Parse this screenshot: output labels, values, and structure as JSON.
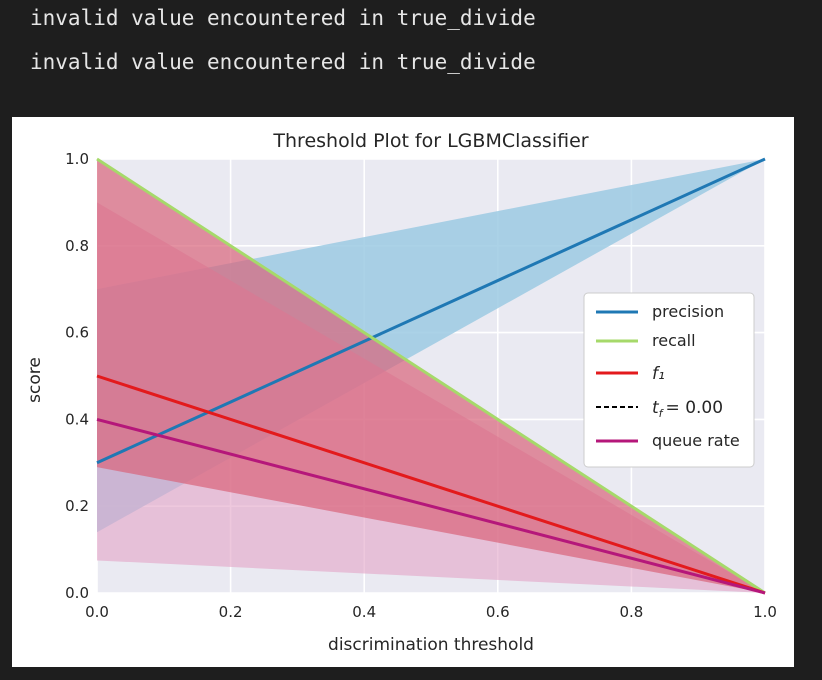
{
  "console": {
    "lines": [
      "invalid value encountered in true_divide",
      "invalid value encountered in true_divide"
    ]
  },
  "chart_data": {
    "type": "line",
    "title": "Threshold Plot for LGBMClassifier",
    "xlabel": "discrimination threshold",
    "ylabel": "score",
    "xlim": [
      0,
      1
    ],
    "ylim": [
      0,
      1
    ],
    "x_ticks": [
      "0.0",
      "0.2",
      "0.4",
      "0.6",
      "0.8",
      "1.0"
    ],
    "y_ticks": [
      "0.0",
      "0.2",
      "0.4",
      "0.6",
      "0.8",
      "1.0"
    ],
    "grid": true,
    "legend_position": "center-right",
    "x": [
      0,
      1
    ],
    "series": [
      {
        "name": "precision",
        "color": "#1f78b4",
        "values": [
          0.3,
          1.0
        ],
        "band_upper": [
          0.7,
          1.0
        ],
        "band_lower": [
          0.14,
          1.0
        ]
      },
      {
        "name": "recall",
        "color": "#a6d96a",
        "values": [
          1.0,
          0.0
        ],
        "band_upper": [
          1.0,
          0.0
        ],
        "band_lower": [
          1.0,
          0.0
        ]
      },
      {
        "name": "f₁",
        "color": "#e31a1c",
        "values": [
          0.5,
          0.0
        ],
        "band_upper": [
          1.0,
          0.0
        ],
        "band_lower": [
          0.29,
          0.0
        ]
      },
      {
        "name": "queue rate",
        "color": "#b5177a",
        "values": [
          0.4,
          0.0
        ],
        "band_upper": [
          0.9,
          0.0
        ],
        "band_lower": [
          0.075,
          0.0
        ]
      }
    ],
    "threshold_label": "t",
    "threshold_subscript": "f",
    "threshold_value_text": "= 0.00",
    "band_colors": {
      "precision": "#9ccae3",
      "recall": "#f2a3a6",
      "f1": "#d8647a",
      "queue": "#e3a3c6"
    }
  }
}
